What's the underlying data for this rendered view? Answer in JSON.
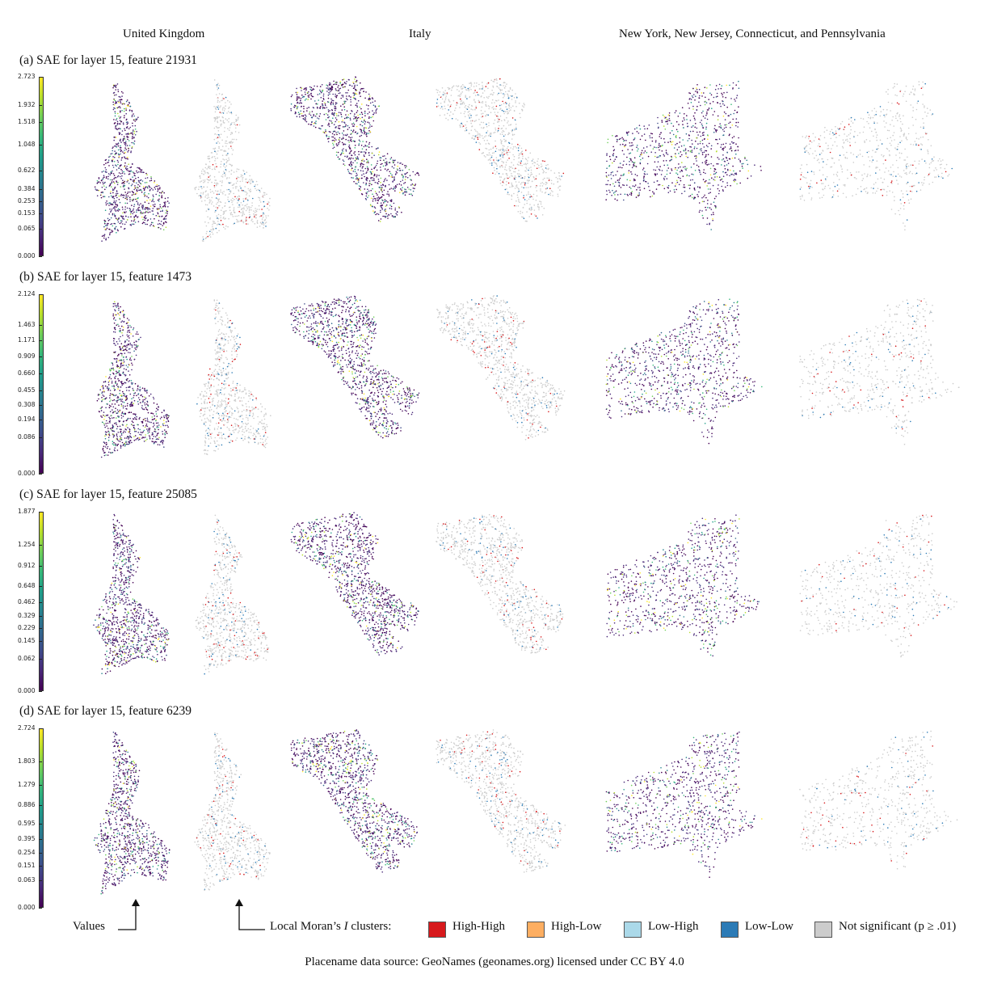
{
  "columns": [
    "United Kingdom",
    "Italy",
    "New York, New Jersey, Connecticut, and Pennsylvania"
  ],
  "rows": [
    {
      "title": "(a) SAE for layer 15, feature 21931",
      "ticks": [
        "2.723",
        "1.932",
        "1.518",
        "1.048",
        "0.622",
        "0.384",
        "0.253",
        "0.153",
        "0.065",
        "0.000"
      ],
      "values": [
        2.723,
        1.932,
        1.518,
        1.048,
        0.622,
        0.384,
        0.253,
        0.153,
        0.065,
        0.0
      ]
    },
    {
      "title": "(b) SAE for layer 15, feature 1473",
      "ticks": [
        "2.124",
        "1.463",
        "1.171",
        "0.909",
        "0.660",
        "0.455",
        "0.308",
        "0.194",
        "0.086",
        "0.000"
      ],
      "values": [
        2.124,
        1.463,
        1.171,
        0.909,
        0.66,
        0.455,
        0.308,
        0.194,
        0.086,
        0.0
      ]
    },
    {
      "title": "(c) SAE for layer 15, feature 25085",
      "ticks": [
        "1.877",
        "1.254",
        "0.912",
        "0.648",
        "0.462",
        "0.329",
        "0.229",
        "0.145",
        "0.062",
        "0.000"
      ],
      "values": [
        1.877,
        1.254,
        0.912,
        0.648,
        0.462,
        0.329,
        0.229,
        0.145,
        0.062,
        0.0
      ]
    },
    {
      "title": "(d) SAE for layer 15, feature 6239",
      "ticks": [
        "2.724",
        "1.803",
        "1.279",
        "0.886",
        "0.595",
        "0.395",
        "0.254",
        "0.151",
        "0.063",
        "0.000"
      ],
      "values": [
        2.724,
        1.803,
        1.279,
        0.886,
        0.595,
        0.395,
        0.254,
        0.151,
        0.063,
        0.0
      ]
    }
  ],
  "legend": {
    "values_label": "Values",
    "clusters_label_prefix": "Local Moran’s ",
    "clusters_label_italic": "I",
    "clusters_label_suffix": " clusters:",
    "items": [
      {
        "label": "High-High",
        "color": "#d7191c"
      },
      {
        "label": "High-Low",
        "color": "#fdae61"
      },
      {
        "label": "Low-High",
        "color": "#abd9e9"
      },
      {
        "label": "Low-Low",
        "color": "#2c7bb6"
      },
      {
        "label": "Not significant (p ≥ .01)",
        "color": "#cccccc"
      }
    ]
  },
  "footer": "Placename data source: GeoNames (geonames.org) licensed under CC BY 4.0"
}
